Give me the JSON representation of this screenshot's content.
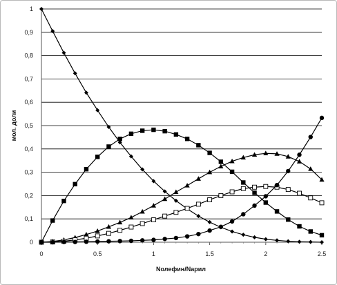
{
  "chart_data": {
    "type": "line",
    "title": "",
    "xlabel": "Nолефин/Nарил",
    "ylabel": "мол. доли",
    "xlim": [
      0,
      2.5
    ],
    "ylim": [
      0,
      1
    ],
    "grid": "horizontal",
    "x_ticks": [
      "0",
      "0.5",
      "1",
      "1.5",
      "2",
      "2.5"
    ],
    "y_ticks": [
      "0",
      "0,1",
      "0,2",
      "0,3",
      "0,4",
      "0,5",
      "0,6",
      "0,7",
      "0,8",
      "0,9",
      "1"
    ],
    "x": [
      0,
      0.1,
      0.2,
      0.3,
      0.4,
      0.5,
      0.6,
      0.7,
      0.8,
      0.9,
      1.0,
      1.1,
      1.2,
      1.3,
      1.4,
      1.5,
      1.6,
      1.7,
      1.8,
      1.9,
      2.0,
      2.1,
      2.2,
      2.3,
      2.4,
      2.5
    ],
    "series": [
      {
        "marker": "diamond-filled",
        "values": [
          1.0,
          0.905,
          0.812,
          0.724,
          0.641,
          0.566,
          0.494,
          0.428,
          0.368,
          0.312,
          0.262,
          0.218,
          0.178,
          0.143,
          0.112,
          0.086,
          0.064,
          0.046,
          0.032,
          0.021,
          0.013,
          0.008,
          0.004,
          0.002,
          0.001,
          0.0
        ]
      },
      {
        "marker": "square-filled",
        "values": [
          0.0,
          0.093,
          0.177,
          0.249,
          0.313,
          0.366,
          0.41,
          0.443,
          0.465,
          0.478,
          0.482,
          0.476,
          0.462,
          0.443,
          0.416,
          0.383,
          0.345,
          0.302,
          0.256,
          0.212,
          0.17,
          0.132,
          0.097,
          0.068,
          0.046,
          0.03
        ]
      },
      {
        "marker": "triangle-filled",
        "values": [
          0.0,
          0.003,
          0.01,
          0.02,
          0.033,
          0.048,
          0.066,
          0.085,
          0.106,
          0.131,
          0.157,
          0.185,
          0.215,
          0.243,
          0.272,
          0.3,
          0.325,
          0.347,
          0.363,
          0.375,
          0.381,
          0.379,
          0.367,
          0.346,
          0.314,
          0.268
        ]
      },
      {
        "marker": "square-open",
        "values": [
          0.0,
          0.001,
          0.004,
          0.01,
          0.017,
          0.027,
          0.038,
          0.051,
          0.065,
          0.08,
          0.096,
          0.112,
          0.128,
          0.145,
          0.163,
          0.182,
          0.2,
          0.216,
          0.23,
          0.236,
          0.239,
          0.236,
          0.226,
          0.21,
          0.19,
          0.169
        ]
      },
      {
        "marker": "circle-filled",
        "values": [
          0.0,
          0.0,
          0.001,
          0.001,
          0.002,
          0.003,
          0.004,
          0.005,
          0.006,
          0.008,
          0.01,
          0.014,
          0.018,
          0.025,
          0.035,
          0.05,
          0.066,
          0.089,
          0.12,
          0.157,
          0.197,
          0.245,
          0.305,
          0.375,
          0.451,
          0.533
        ]
      }
    ]
  }
}
